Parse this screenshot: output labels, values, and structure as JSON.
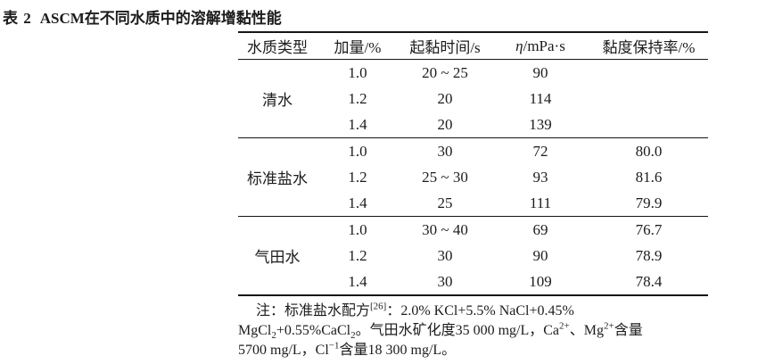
{
  "title": {
    "label": "表 2",
    "text": "ASCM在不同水质中的溶解增黏性能"
  },
  "table": {
    "headers": [
      "水质类型",
      "加量/%",
      "起黏时间/s",
      "η/mPa·s",
      "黏度保持率/%"
    ],
    "italic_header_index": 3,
    "groups": [
      {
        "type": "清水",
        "rows": [
          [
            "1.0",
            "20 ~ 25",
            "90",
            ""
          ],
          [
            "1.2",
            "20",
            "114",
            ""
          ],
          [
            "1.4",
            "20",
            "139",
            ""
          ]
        ]
      },
      {
        "type": "标准盐水",
        "rows": [
          [
            "1.0",
            "30",
            "72",
            "80.0"
          ],
          [
            "1.2",
            "25 ~ 30",
            "93",
            "81.6"
          ],
          [
            "1.4",
            "25",
            "111",
            "79.9"
          ]
        ]
      },
      {
        "type": "气田水",
        "rows": [
          [
            "1.0",
            "30 ~ 40",
            "69",
            "76.7"
          ],
          [
            "1.2",
            "30",
            "90",
            "78.9"
          ],
          [
            "1.4",
            "30",
            "109",
            "78.4"
          ]
        ]
      }
    ]
  },
  "footnote": {
    "lines": [
      [
        {
          "v": "注：标准盐水配方"
        },
        {
          "v": "[26]",
          "style": "sup"
        },
        {
          "v": "：2.0% KCl+5.5% NaCl+0.45%"
        }
      ],
      [
        {
          "v": "MgCl"
        },
        {
          "v": "2",
          "style": "sub"
        },
        {
          "v": "+0.55%CaCl"
        },
        {
          "v": "2",
          "style": "sub"
        },
        {
          "v": "。气田水矿化度35 000 mg/L，Ca"
        },
        {
          "v": "2+",
          "style": "sup"
        },
        {
          "v": "、Mg"
        },
        {
          "v": "2+",
          "style": "sup"
        },
        {
          "v": "含量"
        }
      ],
      [
        {
          "v": "5700 mg/L，Cl"
        },
        {
          "v": "−1",
          "style": "sup"
        },
        {
          "v": "含量18 300 mg/L。"
        }
      ]
    ]
  }
}
